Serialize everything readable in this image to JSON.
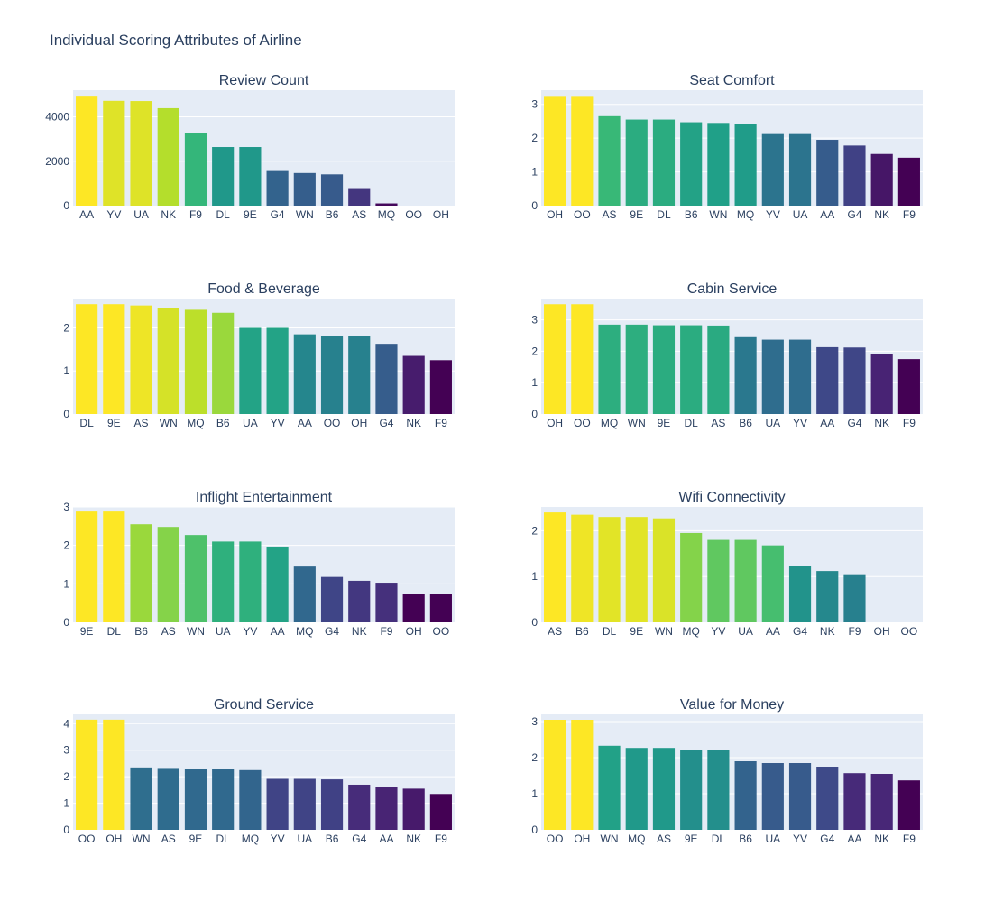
{
  "title": "Individual Scoring Attributes of Airline",
  "colors": {
    "plot_bg": "#E5ECF6",
    "grid": "#ffffff",
    "text": "#2a3f5f",
    "colorscale": "viridis"
  },
  "chart_data": [
    {
      "type": "bar",
      "title": "Review Count",
      "categories": [
        "AA",
        "YV",
        "UA",
        "NK",
        "F9",
        "DL",
        "9E",
        "G4",
        "WN",
        "B6",
        "AS",
        "MQ",
        "OO",
        "OH"
      ],
      "values": [
        4950,
        4720,
        4710,
        4390,
        3280,
        2640,
        2640,
        1560,
        1470,
        1410,
        790,
        100,
        0,
        0
      ],
      "ylim": [
        0,
        5200
      ],
      "yticks": [
        0,
        2000,
        4000
      ],
      "grid": true
    },
    {
      "type": "bar",
      "title": "Seat Comfort",
      "categories": [
        "OH",
        "OO",
        "AS",
        "9E",
        "DL",
        "B6",
        "WN",
        "MQ",
        "YV",
        "UA",
        "AA",
        "G4",
        "NK",
        "F9"
      ],
      "values": [
        3.25,
        3.25,
        2.65,
        2.55,
        2.55,
        2.47,
        2.45,
        2.42,
        2.12,
        2.12,
        1.95,
        1.78,
        1.53,
        1.42
      ],
      "ylim": [
        0,
        3.42
      ],
      "yticks": [
        0,
        1,
        2,
        3
      ],
      "grid": true
    },
    {
      "type": "bar",
      "title": "Food & Beverage",
      "categories": [
        "DL",
        "9E",
        "AS",
        "WN",
        "MQ",
        "B6",
        "UA",
        "YV",
        "AA",
        "OO",
        "OH",
        "G4",
        "NK",
        "F9"
      ],
      "values": [
        2.55,
        2.55,
        2.52,
        2.47,
        2.42,
        2.35,
        2.0,
        2.0,
        1.85,
        1.82,
        1.82,
        1.63,
        1.35,
        1.25
      ],
      "ylim": [
        0,
        2.68
      ],
      "yticks": [
        0,
        1,
        2
      ],
      "grid": true
    },
    {
      "type": "bar",
      "title": "Cabin Service",
      "categories": [
        "OH",
        "OO",
        "MQ",
        "WN",
        "9E",
        "DL",
        "AS",
        "B6",
        "UA",
        "YV",
        "AA",
        "G4",
        "NK",
        "F9"
      ],
      "values": [
        3.5,
        3.5,
        2.85,
        2.85,
        2.83,
        2.83,
        2.82,
        2.45,
        2.37,
        2.37,
        2.13,
        2.12,
        1.92,
        1.75
      ],
      "ylim": [
        0,
        3.68
      ],
      "yticks": [
        0,
        1,
        2,
        3
      ],
      "grid": true
    },
    {
      "type": "bar",
      "title": "Inflight Entertainment",
      "categories": [
        "9E",
        "DL",
        "B6",
        "AS",
        "WN",
        "UA",
        "YV",
        "AA",
        "MQ",
        "G4",
        "NK",
        "F9",
        "OH",
        "OO"
      ],
      "values": [
        2.88,
        2.88,
        2.55,
        2.48,
        2.27,
        2.1,
        2.1,
        1.97,
        1.45,
        1.18,
        1.08,
        1.03,
        0.73,
        0.73
      ],
      "ylim": [
        0,
        3.0
      ],
      "yticks": [
        0,
        1,
        2,
        3
      ],
      "grid": true
    },
    {
      "type": "bar",
      "title": "Wifi Connectivity",
      "categories": [
        "AS",
        "B6",
        "DL",
        "9E",
        "WN",
        "MQ",
        "YV",
        "UA",
        "AA",
        "G4",
        "NK",
        "F9",
        "OH",
        "OO"
      ],
      "values": [
        2.4,
        2.35,
        2.3,
        2.3,
        2.27,
        1.95,
        1.8,
        1.8,
        1.68,
        1.23,
        1.12,
        1.05,
        0,
        0
      ],
      "ylim": [
        0,
        2.52
      ],
      "yticks": [
        0,
        1,
        2
      ],
      "grid": true
    },
    {
      "type": "bar",
      "title": "Ground Service",
      "categories": [
        "OO",
        "OH",
        "WN",
        "AS",
        "9E",
        "DL",
        "MQ",
        "YV",
        "UA",
        "B6",
        "G4",
        "AA",
        "NK",
        "F9"
      ],
      "values": [
        4.15,
        4.15,
        2.35,
        2.33,
        2.3,
        2.3,
        2.25,
        1.92,
        1.92,
        1.9,
        1.7,
        1.63,
        1.55,
        1.35
      ],
      "ylim": [
        0,
        4.35
      ],
      "yticks": [
        0,
        1,
        2,
        3,
        4
      ],
      "grid": true
    },
    {
      "type": "bar",
      "title": "Value for Money",
      "categories": [
        "OO",
        "OH",
        "WN",
        "MQ",
        "AS",
        "9E",
        "DL",
        "B6",
        "UA",
        "YV",
        "G4",
        "AA",
        "NK",
        "F9"
      ],
      "values": [
        3.05,
        3.05,
        2.33,
        2.27,
        2.27,
        2.2,
        2.2,
        1.9,
        1.85,
        1.85,
        1.75,
        1.57,
        1.55,
        1.37
      ],
      "ylim": [
        0,
        3.2
      ],
      "yticks": [
        0,
        1,
        2,
        3
      ],
      "grid": true
    }
  ]
}
